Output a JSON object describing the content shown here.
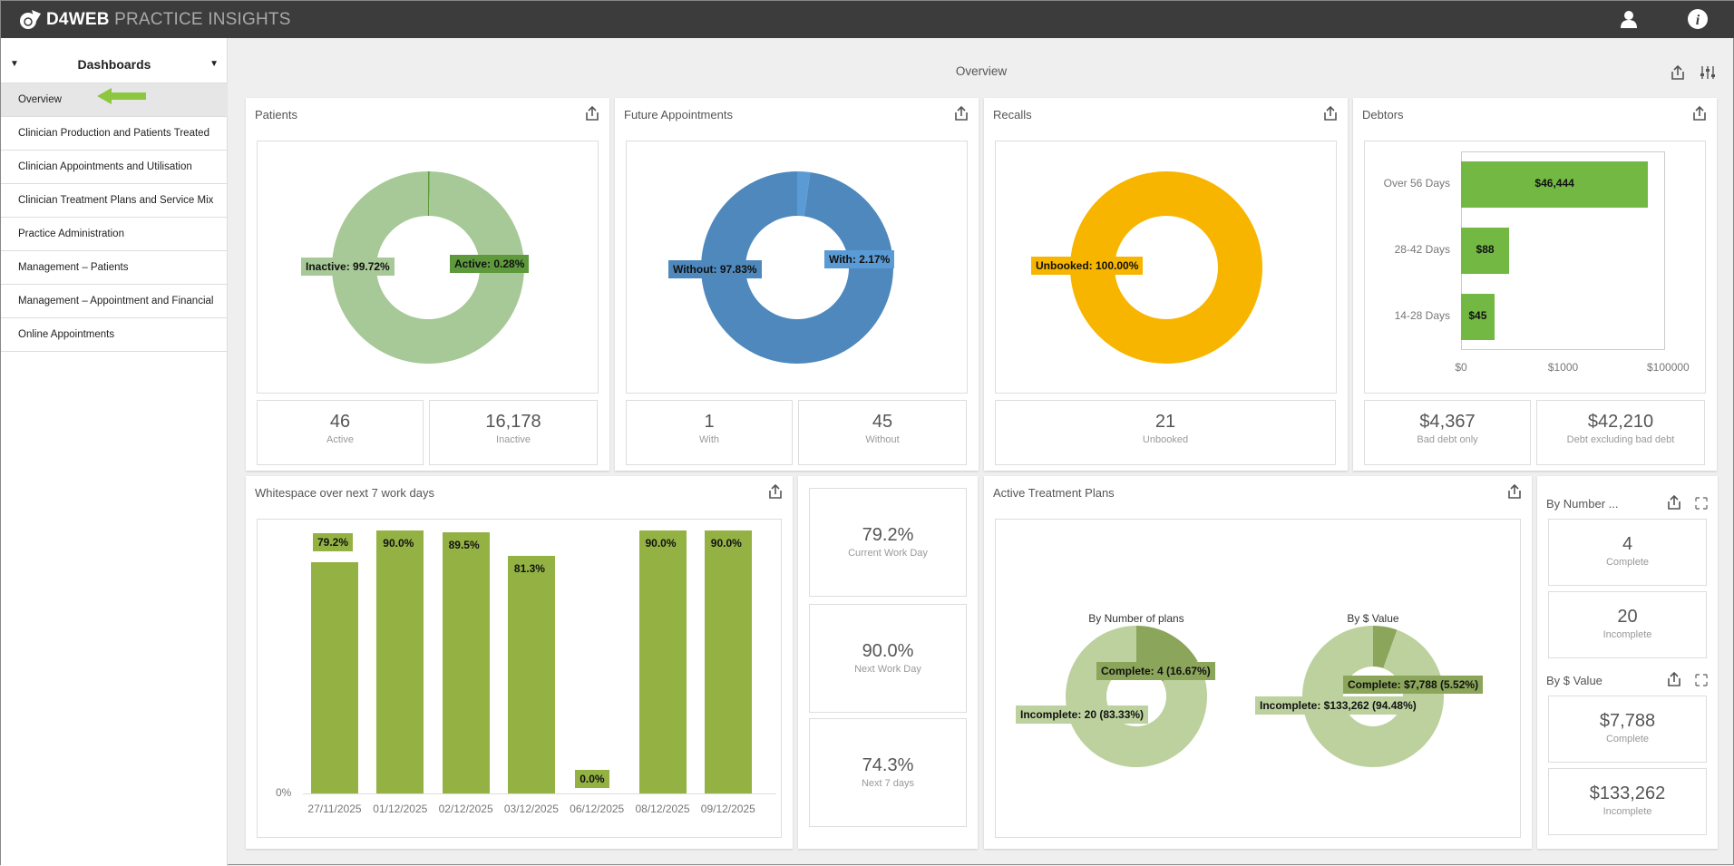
{
  "app": {
    "brand_bold": "D4WEB",
    "brand_light": "PRACTICE INSIGHTS",
    "icons": [
      "user-icon",
      "info-icon"
    ]
  },
  "sidebar": {
    "header": "Dashboards",
    "items": [
      {
        "label": "Overview",
        "selected": true
      },
      {
        "label": "Clinician Production and Patients Treated"
      },
      {
        "label": "Clinician Appointments and Utilisation"
      },
      {
        "label": "Clinician Treatment Plans and Service Mix"
      },
      {
        "label": "Practice Administration"
      },
      {
        "label": "Management – Patients"
      },
      {
        "label": "Management – Appointment and Financial"
      },
      {
        "label": "Online Appointments"
      }
    ]
  },
  "page": {
    "title": "Overview"
  },
  "colors": {
    "accent": "#8dc63f",
    "patients_inactive": "#a7c897",
    "patients_active": "#5e9a3c",
    "future_without": "#4e88bd",
    "future_with": "#5b9bd5",
    "recalls": "#f7b500",
    "debtors": "#72b843",
    "whitespace": "#94b243",
    "plan_incomplete": "#bcd19e",
    "plan_complete": "#8ba55a"
  },
  "cards": {
    "patients": {
      "title": "Patients",
      "stats": [
        {
          "value": "46",
          "label": "Active"
        },
        {
          "value": "16,178",
          "label": "Inactive"
        }
      ]
    },
    "future": {
      "title": "Future Appointments",
      "stats": [
        {
          "value": "1",
          "label": "With"
        },
        {
          "value": "45",
          "label": "Without"
        }
      ]
    },
    "recalls": {
      "title": "Recalls",
      "stats": [
        {
          "value": "21",
          "label": "Unbooked"
        }
      ]
    },
    "debtors": {
      "title": "Debtors",
      "stats": [
        {
          "value": "$4,367",
          "label": "Bad debt only"
        },
        {
          "value": "$42,210",
          "label": "Debt excluding bad debt"
        }
      ]
    },
    "whitespace": {
      "title": "Whitespace over next 7 work days",
      "stats": [
        {
          "value": "79.2%",
          "label": "Current Work Day"
        },
        {
          "value": "90.0%",
          "label": "Next Work Day"
        },
        {
          "value": "74.3%",
          "label": "Next 7 days"
        }
      ]
    },
    "treatment": {
      "title": "Active Treatment Plans"
    },
    "side": {
      "by_number": {
        "title": "By Number ...",
        "stats": [
          {
            "value": "4",
            "label": "Complete"
          },
          {
            "value": "20",
            "label": "Incomplete"
          }
        ]
      },
      "by_value": {
        "title": "By $ Value",
        "stats": [
          {
            "value": "$7,788",
            "label": "Complete"
          },
          {
            "value": "$133,262",
            "label": "Incomplete"
          }
        ]
      }
    }
  },
  "chart_data": [
    {
      "type": "pie",
      "donut": true,
      "slices": [
        {
          "label": "Inactive: 99.72%",
          "value": 99.72
        },
        {
          "label": "Active: 0.28%",
          "value": 0.28
        }
      ]
    },
    {
      "type": "pie",
      "donut": true,
      "slices": [
        {
          "label": "Without: 97.83%",
          "value": 97.83
        },
        {
          "label": "With: 2.17%",
          "value": 2.17
        }
      ]
    },
    {
      "type": "pie",
      "donut": true,
      "slices": [
        {
          "label": "Unbooked: 100.00%",
          "value": 100
        }
      ]
    },
    {
      "type": "bar",
      "orientation": "horizontal",
      "categories": [
        "Over 56 Days",
        "28-42 Days",
        "14-28 Days"
      ],
      "values": [
        46444,
        88,
        45
      ],
      "data_labels": [
        "$46,444",
        "$88",
        "$45"
      ],
      "xscale": "log",
      "xlim": [
        10,
        100000
      ],
      "xticks": [
        "$0",
        "$1000",
        "$100000"
      ]
    },
    {
      "type": "bar",
      "categories": [
        "27/11/2025",
        "01/12/2025",
        "02/12/2025",
        "03/12/2025",
        "06/12/2025",
        "08/12/2025",
        "09/12/2025"
      ],
      "values": [
        79.2,
        90.0,
        89.5,
        81.3,
        0.0,
        90.0,
        90.0
      ],
      "data_labels": [
        "79.2%",
        "90.0%",
        "89.5%",
        "81.3%",
        "0.0%",
        "90.0%",
        "90.0%"
      ],
      "ylim": [
        0,
        100
      ],
      "yticks": [
        "0%"
      ]
    },
    {
      "type": "pie",
      "donut": true,
      "title": "By Number of plans",
      "slices": [
        {
          "label": "Complete: 4 (16.67%)",
          "value": 16.67
        },
        {
          "label": "Incomplete: 20 (83.33%)",
          "value": 83.33
        }
      ]
    },
    {
      "type": "pie",
      "donut": true,
      "title": "By $ Value",
      "slices": [
        {
          "label": "Complete: $7,788 (5.52%)",
          "value": 5.52
        },
        {
          "label": "Incomplete: $133,262 (94.48%)",
          "value": 94.48
        }
      ]
    }
  ]
}
